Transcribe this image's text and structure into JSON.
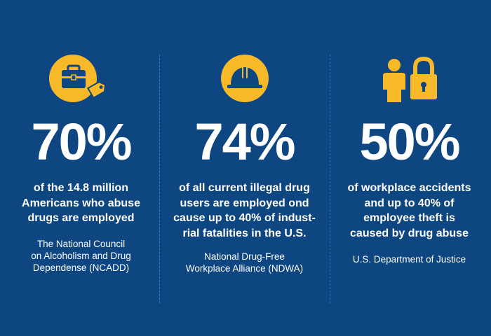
{
  "accent_color": "#f7b928",
  "background_color": "#0d4680",
  "stats": [
    {
      "icon": "briefcase-icon",
      "percent": "70%",
      "description_lines": [
        "of the 14.8 million",
        "Americans who abuse",
        "drugs are employed"
      ],
      "source_lines": [
        "The National Council",
        "on Alcoholism and Drug",
        "Dependense (NCADD)"
      ]
    },
    {
      "icon": "hard-hat-icon",
      "percent": "74%",
      "description_lines": [
        "of all current illegal drug",
        "users are employed ond",
        "cause up to 40% of indust-",
        "rial fatalities in the U.S."
      ],
      "source_lines": [
        "National Drug-Free",
        "Workplace Alliance (NDWA)"
      ]
    },
    {
      "icon": "person-lock-icon",
      "percent": "50%",
      "description_lines": [
        "of workplace accidents",
        "and up to 40% of",
        "employee theft is",
        "caused by drug abuse"
      ],
      "source_lines": [
        "U.S. Department of Justice"
      ]
    }
  ]
}
